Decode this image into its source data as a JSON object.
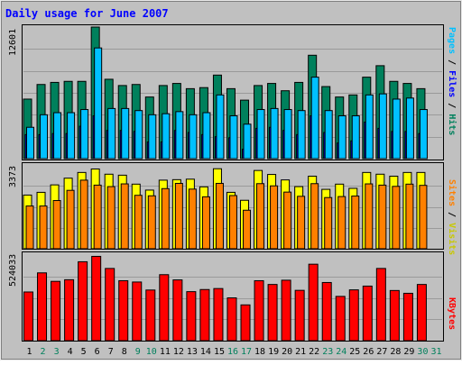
{
  "colors": {
    "background": "#c0c0c0",
    "title": "#0000ff",
    "hits": "#00805c",
    "files": "#0000ff",
    "pages": "#00c0ff",
    "visits": "#ffff00",
    "sites": "#ff8000",
    "kbytes": "#ff0000",
    "weekend_label": "#00805c",
    "weekday_label": "#000000",
    "divider": "#000000"
  },
  "chart_data": [
    {
      "type": "bar",
      "panel": "hits_files_pages",
      "title": "Daily usage for June 2007",
      "ylabel": "Pages / Files / Hits",
      "ylabel_parts": [
        "Pages",
        "Files",
        "Hits"
      ],
      "ymax_label": "12601",
      "ylim": [
        0,
        12601
      ],
      "categories": [
        "1",
        "2",
        "3",
        "4",
        "5",
        "6",
        "7",
        "8",
        "9",
        "10",
        "11",
        "12",
        "13",
        "14",
        "15",
        "16",
        "17",
        "18",
        "19",
        "20",
        "21",
        "22",
        "23",
        "24",
        "25",
        "26",
        "27",
        "28",
        "29",
        "30",
        "31"
      ],
      "weekend_days": [
        2,
        3,
        9,
        10,
        16,
        17,
        23,
        24,
        30,
        31
      ],
      "series": [
        {
          "name": "Hits",
          "values": [
            5700,
            7100,
            7300,
            7400,
            7400,
            12600,
            7600,
            7000,
            7100,
            5900,
            7000,
            7200,
            6700,
            6800,
            8000,
            6700,
            5600,
            7000,
            7200,
            6500,
            7300,
            9900,
            6900,
            5900,
            6100,
            7800,
            8900,
            7400,
            7200,
            6700,
            null
          ]
        },
        {
          "name": "Files",
          "values": [
            2300,
            2300,
            2400,
            2400,
            3100,
            4100,
            2700,
            2700,
            2600,
            1600,
            1600,
            2700,
            2500,
            2300,
            2100,
            2000,
            900,
            2900,
            3000,
            2700,
            2300,
            4100,
            2500,
            1500,
            1700,
            3500,
            2900,
            2600,
            2600,
            2400,
            null
          ]
        },
        {
          "name": "Pages",
          "values": [
            3000,
            4200,
            4400,
            4400,
            4700,
            10600,
            4800,
            4800,
            4600,
            4200,
            4300,
            4500,
            4200,
            4400,
            6100,
            4100,
            3300,
            4700,
            4800,
            4700,
            4600,
            7800,
            4600,
            4100,
            4100,
            6100,
            6200,
            5700,
            5800,
            4700,
            null
          ]
        }
      ]
    },
    {
      "type": "bar",
      "panel": "visits_sites",
      "ylabel": "Sites / Visits",
      "ylabel_parts": [
        "Sites",
        "Visits"
      ],
      "ymax_label": "3373",
      "ylim": [
        0,
        3373
      ],
      "categories": [
        "1",
        "2",
        "3",
        "4",
        "5",
        "6",
        "7",
        "8",
        "9",
        "10",
        "11",
        "12",
        "13",
        "14",
        "15",
        "16",
        "17",
        "18",
        "19",
        "20",
        "21",
        "22",
        "23",
        "24",
        "25",
        "26",
        "27",
        "28",
        "29",
        "30",
        "31"
      ],
      "series": [
        {
          "name": "Visits",
          "values": [
            2160,
            2270,
            2570,
            2840,
            3070,
            3210,
            3000,
            2960,
            2600,
            2360,
            2760,
            2780,
            2800,
            2490,
            3220,
            2270,
            1950,
            3150,
            2990,
            2770,
            2500,
            2920,
            2390,
            2600,
            2430,
            3070,
            3000,
            2920,
            3070,
            3070,
            null
          ]
        },
        {
          "name": "Sites",
          "values": [
            1720,
            1720,
            1940,
            2350,
            2760,
            2560,
            2500,
            2610,
            2150,
            2130,
            2420,
            2630,
            2400,
            2090,
            2630,
            2140,
            1550,
            2620,
            2530,
            2280,
            2110,
            2620,
            2060,
            2100,
            2120,
            2610,
            2560,
            2510,
            2600,
            2550,
            null
          ]
        }
      ]
    },
    {
      "type": "bar",
      "panel": "kbytes",
      "ylabel": "KBytes",
      "ymax_label": "524033",
      "ylim": [
        0,
        524033
      ],
      "categories": [
        "1",
        "2",
        "3",
        "4",
        "5",
        "6",
        "7",
        "8",
        "9",
        "10",
        "11",
        "12",
        "13",
        "14",
        "15",
        "16",
        "17",
        "18",
        "19",
        "20",
        "21",
        "22",
        "23",
        "24",
        "25",
        "26",
        "27",
        "28",
        "29",
        "30",
        "31"
      ],
      "series": [
        {
          "name": "KBytes",
          "values": [
            298000,
            415000,
            363000,
            373000,
            483000,
            516000,
            442000,
            367000,
            359000,
            310000,
            404000,
            372000,
            300000,
            313000,
            319000,
            262000,
            219000,
            367000,
            344000,
            370000,
            308000,
            468000,
            356000,
            271000,
            311000,
            334000,
            442000,
            307000,
            290000,
            344000,
            null
          ]
        }
      ]
    }
  ]
}
